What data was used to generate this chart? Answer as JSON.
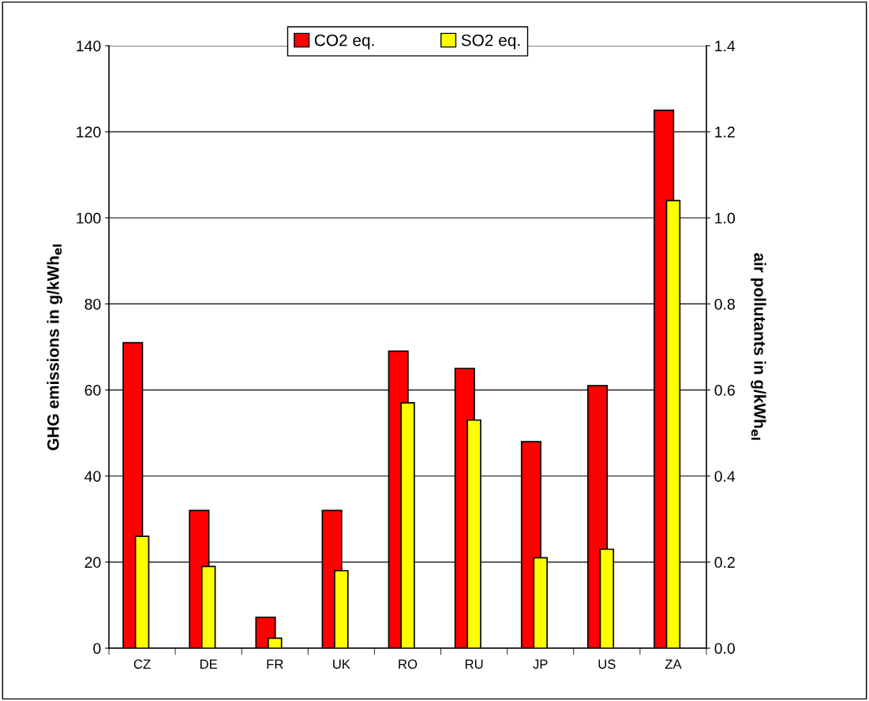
{
  "chart_data": {
    "type": "bar",
    "ylabel": "GHG emissions in g/kWh$_{el}$",
    "y2label": "air pollutants in g/kWh$_{el}$",
    "categories": [
      "CZ",
      "DE",
      "FR",
      "UK",
      "RO",
      "RU",
      "JP",
      "US",
      "ZA"
    ],
    "series": [
      {
        "name": "CO2 eq.",
        "color": "#ff0000",
        "values": [
          71,
          32,
          7.2,
          32,
          69,
          65,
          48,
          61,
          125
        ]
      },
      {
        "name": "SO2 eq.",
        "color": "#ffff00",
        "axis": "y2",
        "values": [
          0.26,
          0.19,
          0.023,
          0.18,
          0.57,
          0.53,
          0.21,
          0.23,
          1.04
        ]
      }
    ],
    "ylim": [
      0,
      140
    ],
    "yticks": [
      0,
      20,
      40,
      60,
      80,
      100,
      120,
      140
    ],
    "y2lim": [
      0,
      1.4
    ],
    "y2ticks": [
      {
        "value": 0,
        "label": "0.0"
      },
      {
        "value": 0.2,
        "label": "0.2"
      },
      {
        "value": 0.4,
        "label": "0.4"
      },
      {
        "value": 0.6,
        "label": "0.6"
      },
      {
        "value": 0.8,
        "label": "0.8"
      },
      {
        "value": 1.0,
        "label": "1.0"
      },
      {
        "value": 1.2,
        "label": "1.2"
      },
      {
        "value": 1.4,
        "label": "1.4"
      }
    ],
    "grid": "y",
    "legend": "top"
  }
}
